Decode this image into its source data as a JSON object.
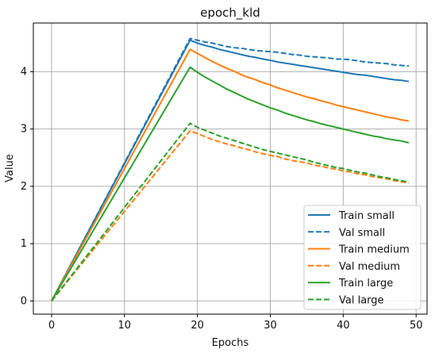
{
  "chart_data": {
    "type": "line",
    "title": "epoch_kld",
    "xlabel": "Epochs",
    "ylabel": "Value",
    "xlim": [
      -2.5,
      51.5
    ],
    "ylim": [
      -0.23,
      4.85
    ],
    "xticks": [
      0,
      10,
      20,
      30,
      40,
      50
    ],
    "yticks": [
      0,
      1,
      2,
      3,
      4
    ],
    "grid": true,
    "legend_position": "lower-right",
    "series": [
      {
        "name": "Train small",
        "color": "#1f77b4",
        "dashed": false,
        "x": [
          0,
          19,
          20,
          21,
          22,
          23,
          24,
          25,
          26,
          27,
          28,
          29,
          30,
          31,
          32,
          33,
          34,
          35,
          36,
          37,
          38,
          39,
          40,
          41,
          42,
          43,
          44,
          45,
          46,
          47,
          48,
          49
        ],
        "y": [
          0,
          4.55,
          4.5,
          4.46,
          4.43,
          4.39,
          4.36,
          4.33,
          4.3,
          4.27,
          4.25,
          4.22,
          4.2,
          4.17,
          4.15,
          4.13,
          4.11,
          4.09,
          4.07,
          4.05,
          4.03,
          4.01,
          3.99,
          3.97,
          3.95,
          3.94,
          3.92,
          3.9,
          3.88,
          3.86,
          3.85,
          3.83
        ]
      },
      {
        "name": "Val small",
        "color": "#1f77b4",
        "dashed": true,
        "x": [
          0,
          19,
          20,
          21,
          22,
          23,
          24,
          25,
          26,
          27,
          28,
          29,
          30,
          31,
          32,
          33,
          34,
          35,
          36,
          37,
          38,
          39,
          40,
          41,
          42,
          43,
          44,
          45,
          46,
          47,
          48,
          49
        ],
        "y": [
          0,
          4.58,
          4.55,
          4.52,
          4.5,
          4.47,
          4.44,
          4.42,
          4.41,
          4.39,
          4.37,
          4.36,
          4.35,
          4.34,
          4.32,
          4.3,
          4.29,
          4.27,
          4.26,
          4.25,
          4.24,
          4.22,
          4.22,
          4.21,
          4.19,
          4.17,
          4.16,
          4.15,
          4.14,
          4.12,
          4.11,
          4.1
        ]
      },
      {
        "name": "Train medium",
        "color": "#ff7f0e",
        "dashed": false,
        "x": [
          0,
          19,
          20,
          21,
          22,
          23,
          24,
          25,
          26,
          27,
          28,
          29,
          30,
          31,
          32,
          33,
          34,
          35,
          36,
          37,
          38,
          39,
          40,
          41,
          42,
          43,
          44,
          45,
          46,
          47,
          48,
          49
        ],
        "y": [
          0,
          4.39,
          4.32,
          4.25,
          4.18,
          4.12,
          4.06,
          4.01,
          3.95,
          3.9,
          3.86,
          3.81,
          3.77,
          3.72,
          3.68,
          3.64,
          3.6,
          3.56,
          3.53,
          3.49,
          3.46,
          3.42,
          3.39,
          3.36,
          3.33,
          3.3,
          3.27,
          3.24,
          3.21,
          3.19,
          3.16,
          3.14
        ]
      },
      {
        "name": "Val medium",
        "color": "#ff7f0e",
        "dashed": true,
        "x": [
          0,
          19,
          20,
          21,
          22,
          23,
          24,
          25,
          26,
          27,
          28,
          29,
          30,
          31,
          32,
          33,
          34,
          35,
          36,
          37,
          38,
          39,
          40,
          41,
          42,
          43,
          44,
          45,
          46,
          47,
          48,
          49
        ],
        "y": [
          0,
          2.97,
          2.92,
          2.87,
          2.82,
          2.78,
          2.74,
          2.71,
          2.67,
          2.64,
          2.6,
          2.57,
          2.54,
          2.52,
          2.48,
          2.45,
          2.43,
          2.41,
          2.37,
          2.35,
          2.32,
          2.3,
          2.27,
          2.25,
          2.22,
          2.2,
          2.17,
          2.15,
          2.13,
          2.1,
          2.08,
          2.06
        ]
      },
      {
        "name": "Train large",
        "color": "#2ca02c",
        "dashed": false,
        "x": [
          0,
          19,
          20,
          21,
          22,
          23,
          24,
          25,
          26,
          27,
          28,
          29,
          30,
          31,
          32,
          33,
          34,
          35,
          36,
          37,
          38,
          39,
          40,
          41,
          42,
          43,
          44,
          45,
          46,
          47,
          48,
          49
        ],
        "y": [
          0,
          4.08,
          3.99,
          3.91,
          3.84,
          3.77,
          3.7,
          3.64,
          3.58,
          3.52,
          3.47,
          3.42,
          3.37,
          3.33,
          3.28,
          3.24,
          3.2,
          3.16,
          3.13,
          3.09,
          3.06,
          3.03,
          3.0,
          2.97,
          2.94,
          2.91,
          2.88,
          2.86,
          2.83,
          2.81,
          2.79,
          2.76
        ]
      },
      {
        "name": "Val large",
        "color": "#2ca02c",
        "dashed": true,
        "x": [
          0,
          19,
          20,
          21,
          22,
          23,
          24,
          25,
          26,
          27,
          28,
          29,
          30,
          31,
          32,
          33,
          34,
          35,
          36,
          37,
          38,
          39,
          40,
          41,
          42,
          43,
          44,
          45,
          46,
          47,
          48,
          49
        ],
        "y": [
          0,
          3.1,
          3.03,
          2.98,
          2.93,
          2.88,
          2.84,
          2.8,
          2.76,
          2.72,
          2.68,
          2.64,
          2.61,
          2.58,
          2.55,
          2.52,
          2.49,
          2.46,
          2.42,
          2.39,
          2.36,
          2.33,
          2.31,
          2.28,
          2.25,
          2.23,
          2.2,
          2.17,
          2.15,
          2.12,
          2.1,
          2.07
        ]
      }
    ]
  }
}
